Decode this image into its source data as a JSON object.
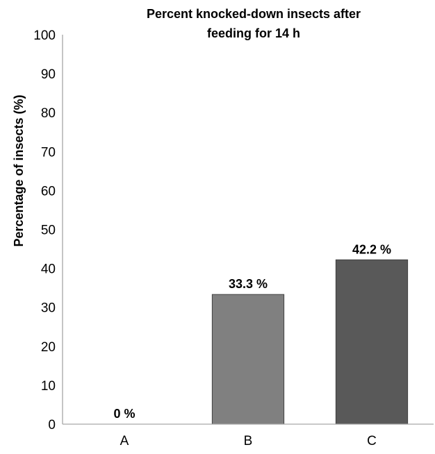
{
  "chart_data": {
    "type": "bar",
    "title_lines": [
      "Percent knocked-down insects after",
      "feeding for 14 h"
    ],
    "xlabel": "",
    "ylabel": "Percentage of insects (%)",
    "categories": [
      "A",
      "B",
      "C"
    ],
    "values": [
      0,
      33.3,
      42.2
    ],
    "data_labels": [
      "0 %",
      "33.3 %",
      "42.2 %"
    ],
    "ylim": [
      0,
      100
    ],
    "yticks": [
      0,
      10,
      20,
      30,
      40,
      50,
      60,
      70,
      80,
      90,
      100
    ],
    "grid": false,
    "legend": "none",
    "bar_colors": [
      "#a6a6a6",
      "#808080",
      "#595959"
    ],
    "axis_color": "#a6a6a6"
  }
}
